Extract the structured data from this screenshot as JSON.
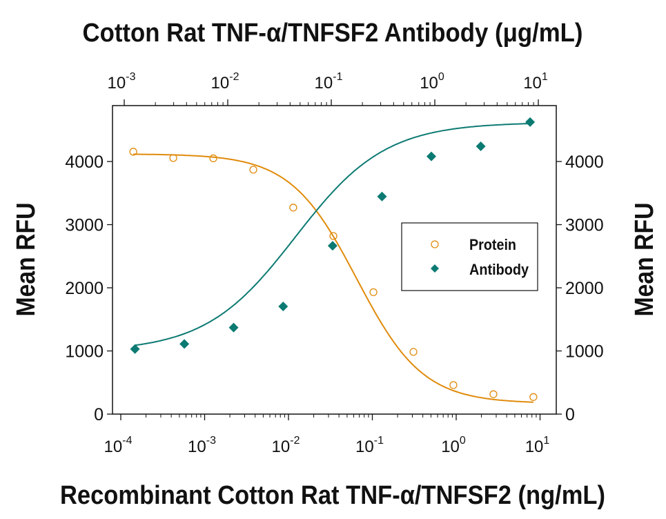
{
  "chart_data": {
    "type": "scatter",
    "title": "",
    "top_xlabel": "Cotton Rat TNF-α/TNFSF2 Antibody (μg/mL)",
    "bottom_xlabel": "Recombinant Cotton Rat TNF-α/TNFSF2 (ng/mL)",
    "ylabel_left": "Mean RFU",
    "ylabel_right": "Mean RFU",
    "x_bottom_scale": "log",
    "x_bottom_range": [
      0.0001,
      10
    ],
    "x_bottom_ticks": [
      "10^-4",
      "10^-3",
      "10^-2",
      "10^-1",
      "10^0",
      "10^1"
    ],
    "x_top_scale": "log",
    "x_top_range": [
      0.001,
      10
    ],
    "x_top_ticks": [
      "10^-3",
      "10^-2",
      "10^-1",
      "10^0",
      "10^1"
    ],
    "ylim": [
      0,
      4900
    ],
    "y_ticks": [
      "0",
      "1000",
      "2000",
      "3000",
      "4000"
    ],
    "grid": false,
    "legend_placement": "right",
    "series": [
      {
        "name": "Protein",
        "axis": "bottom",
        "marker": "open-circle",
        "color": "#E08A0A",
        "x": [
          0.000141,
          0.000423,
          0.00127,
          0.00381,
          0.0114,
          0.0343,
          0.103,
          0.309,
          0.926,
          2.78,
          8.33
        ],
        "y": [
          4155,
          4055,
          4050,
          3870,
          3270,
          2820,
          1930,
          985,
          460,
          315,
          270
        ],
        "fit": {
          "bottom": 170,
          "top": 4120,
          "ec50": 0.065,
          "hill": 1.1
        }
      },
      {
        "name": "Antibody",
        "axis": "top",
        "marker": "filled-diamond",
        "color": "#0B7A72",
        "x": [
          0.00127,
          0.00381,
          0.0114,
          0.0343,
          0.103,
          0.309,
          0.926,
          2.78,
          8.33
        ],
        "y": [
          1030,
          1110,
          1370,
          1705,
          2665,
          3445,
          4080,
          4240,
          4625
        ],
        "fit": {
          "bottom": 990,
          "top": 4620,
          "ec50": 0.045,
          "hill": 1.0
        }
      }
    ]
  }
}
